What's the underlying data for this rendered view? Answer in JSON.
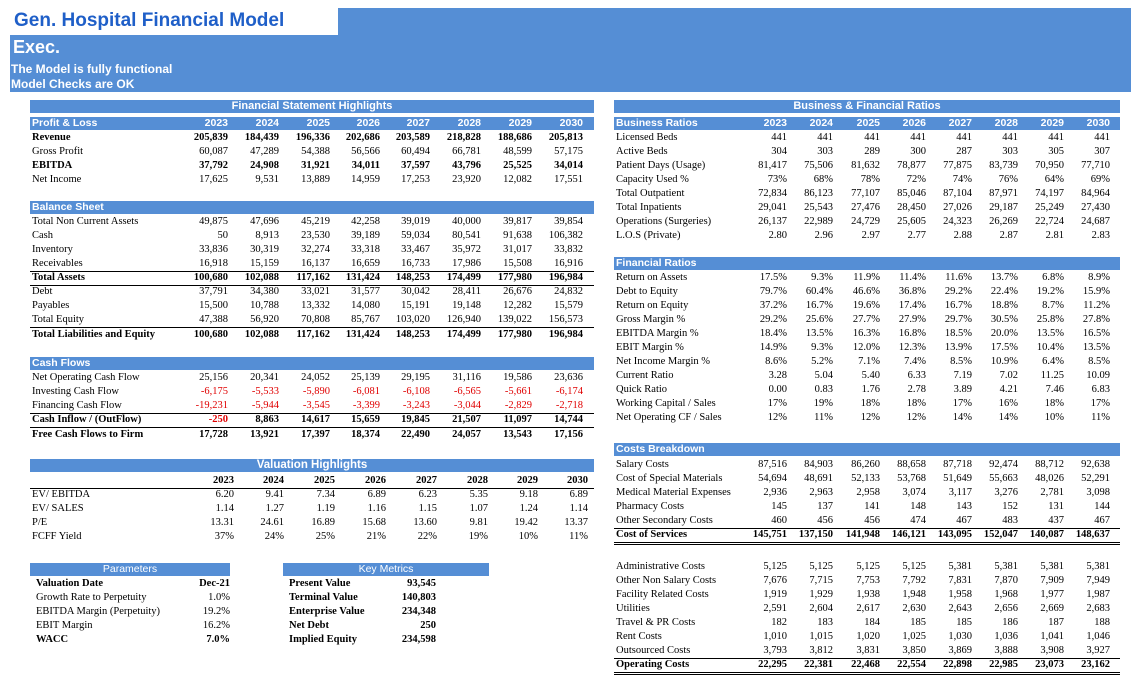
{
  "header": {
    "title": "Gen. Hospital Financial Model",
    "subtitle": "Exec.",
    "status_line1": "The Model is fully functional",
    "status_line2": "Model Checks are OK"
  },
  "years": [
    "2023",
    "2024",
    "2025",
    "2026",
    "2027",
    "2028",
    "2029",
    "2030"
  ],
  "fin_highlights_title": "Financial Statement Highlights",
  "pl": {
    "title": "Profit & Loss",
    "rows": [
      {
        "label": "Revenue",
        "bold": true,
        "values": [
          "205,839",
          "184,439",
          "196,336",
          "202,686",
          "203,589",
          "218,828",
          "188,686",
          "205,813"
        ]
      },
      {
        "label": "Gross Profit",
        "values": [
          "60,087",
          "47,289",
          "54,388",
          "56,566",
          "60,494",
          "66,781",
          "48,599",
          "57,175"
        ]
      },
      {
        "label": "EBITDA",
        "bold": true,
        "values": [
          "37,792",
          "24,908",
          "31,921",
          "34,011",
          "37,597",
          "43,796",
          "25,525",
          "34,014"
        ]
      },
      {
        "label": "Net Income",
        "values": [
          "17,625",
          "9,531",
          "13,889",
          "14,959",
          "17,253",
          "23,920",
          "12,082",
          "17,551"
        ]
      }
    ]
  },
  "bs": {
    "title": "Balance Sheet",
    "rows": [
      {
        "label": "Total Non Current Assets",
        "values": [
          "49,875",
          "47,696",
          "45,219",
          "42,258",
          "39,019",
          "40,000",
          "39,817",
          "39,854"
        ]
      },
      {
        "label": "Cash",
        "values": [
          "50",
          "8,913",
          "23,530",
          "39,189",
          "59,034",
          "80,541",
          "91,638",
          "106,382"
        ]
      },
      {
        "label": "Inventory",
        "values": [
          "33,836",
          "30,319",
          "32,274",
          "33,318",
          "33,467",
          "35,972",
          "31,017",
          "33,832"
        ]
      },
      {
        "label": "Receivables",
        "values": [
          "16,918",
          "15,159",
          "16,137",
          "16,659",
          "16,733",
          "17,986",
          "15,508",
          "16,916"
        ]
      },
      {
        "label": "Total Assets",
        "bold": true,
        "values": [
          "100,680",
          "102,088",
          "117,162",
          "131,424",
          "148,253",
          "174,499",
          "177,980",
          "196,984"
        ]
      },
      {
        "label": "Debt",
        "values": [
          "37,791",
          "34,380",
          "33,021",
          "31,577",
          "30,042",
          "28,411",
          "26,676",
          "24,832"
        ]
      },
      {
        "label": "Payables",
        "values": [
          "15,500",
          "10,788",
          "13,332",
          "14,080",
          "15,191",
          "19,148",
          "12,282",
          "15,579"
        ]
      },
      {
        "label": "Total Equity",
        "values": [
          "47,388",
          "56,920",
          "70,808",
          "85,767",
          "103,020",
          "126,940",
          "139,022",
          "156,573"
        ]
      },
      {
        "label": "Total Liabilities and Equity",
        "bold": true,
        "values": [
          "100,680",
          "102,088",
          "117,162",
          "131,424",
          "148,253",
          "174,499",
          "177,980",
          "196,984"
        ]
      }
    ]
  },
  "cf": {
    "title": "Cash Flows",
    "rows": [
      {
        "label": "Net Operating Cash Flow",
        "values": [
          "25,156",
          "20,341",
          "24,052",
          "25,139",
          "29,195",
          "31,116",
          "19,586",
          "23,636"
        ]
      },
      {
        "label": "Investing Cash Flow",
        "values": [
          "-6,175",
          "-5,533",
          "-5,890",
          "-6,081",
          "-6,108",
          "-6,565",
          "-5,661",
          "-6,174"
        ]
      },
      {
        "label": "Financing Cash Flow",
        "values": [
          "-19,231",
          "-5,944",
          "-3,545",
          "-3,399",
          "-3,243",
          "-3,044",
          "-2,829",
          "-2,718"
        ]
      },
      {
        "label": "Cash Inflow / (OutFlow)",
        "bold": true,
        "values": [
          "-250",
          "8,863",
          "14,617",
          "15,659",
          "19,845",
          "21,507",
          "11,097",
          "14,744"
        ]
      },
      {
        "label": "Free Cash Flows to Firm",
        "bold": true,
        "values": [
          "17,728",
          "13,921",
          "17,397",
          "18,374",
          "22,490",
          "24,057",
          "13,543",
          "17,156"
        ]
      }
    ]
  },
  "valuation": {
    "title": "Valuation Highlights",
    "rows": [
      {
        "label": "EV/ EBITDA",
        "values": [
          "6.20",
          "9.41",
          "7.34",
          "6.89",
          "6.23",
          "5.35",
          "9.18",
          "6.89"
        ]
      },
      {
        "label": "EV/ SALES",
        "values": [
          "1.14",
          "1.27",
          "1.19",
          "1.16",
          "1.15",
          "1.07",
          "1.24",
          "1.14"
        ]
      },
      {
        "label": "P/E",
        "values": [
          "13.31",
          "24.61",
          "16.89",
          "15.68",
          "13.60",
          "9.81",
          "19.42",
          "13.37"
        ]
      },
      {
        "label": "FCFF Yield",
        "values": [
          "37%",
          "24%",
          "25%",
          "21%",
          "22%",
          "19%",
          "10%",
          "11%"
        ]
      }
    ]
  },
  "parameters": {
    "title": "Parameters",
    "rows": [
      {
        "label": "Valuation Date",
        "value": "Dec-21"
      },
      {
        "label": "Growth Rate to Perpetuity",
        "value": "1.0%"
      },
      {
        "label": "EBITDA Margin (Perpetuity)",
        "value": "19.2%"
      },
      {
        "label": "EBIT Margin",
        "value": "16.2%"
      },
      {
        "label": "WACC",
        "value": "7.0%"
      }
    ]
  },
  "key_metrics": {
    "title": "Key Metrics",
    "rows": [
      {
        "label": "Present Value",
        "value": "93,545"
      },
      {
        "label": "Terminal Value",
        "value": "140,803"
      },
      {
        "label": "Enterprise Value",
        "value": "234,348"
      },
      {
        "label": "Net Debt",
        "value": "250"
      },
      {
        "label": "Implied Equity",
        "value": "234,598"
      }
    ]
  },
  "bfr_title": "Business & Financial Ratios",
  "business": {
    "title": "Business Ratios",
    "rows": [
      {
        "label": "Licensed Beds",
        "values": [
          "441",
          "441",
          "441",
          "441",
          "441",
          "441",
          "441",
          "441"
        ]
      },
      {
        "label": "Active Beds",
        "values": [
          "304",
          "303",
          "289",
          "300",
          "287",
          "303",
          "305",
          "307"
        ]
      },
      {
        "label": "Patient Days (Usage)",
        "values": [
          "81,417",
          "75,506",
          "81,632",
          "78,877",
          "77,875",
          "83,739",
          "70,950",
          "77,710"
        ]
      },
      {
        "label": "Capacity Used %",
        "values": [
          "73%",
          "68%",
          "78%",
          "72%",
          "74%",
          "76%",
          "64%",
          "69%"
        ]
      },
      {
        "label": "Total Outpatient",
        "values": [
          "72,834",
          "86,123",
          "77,107",
          "85,046",
          "87,104",
          "87,971",
          "74,197",
          "84,964"
        ]
      },
      {
        "label": "Total Inpatients",
        "values": [
          "29,041",
          "25,543",
          "27,476",
          "28,450",
          "27,026",
          "29,187",
          "25,249",
          "27,430"
        ]
      },
      {
        "label": "Operations (Surgeries)",
        "values": [
          "26,137",
          "22,989",
          "24,729",
          "25,605",
          "24,323",
          "26,269",
          "22,724",
          "24,687"
        ]
      },
      {
        "label": "L.O.S (Private)",
        "values": [
          "2.80",
          "2.96",
          "2.97",
          "2.77",
          "2.88",
          "2.87",
          "2.81",
          "2.83"
        ]
      }
    ]
  },
  "fin_ratios": {
    "title": "Financial Ratios",
    "rows": [
      {
        "label": "Return on Assets",
        "values": [
          "17.5%",
          "9.3%",
          "11.9%",
          "11.4%",
          "11.6%",
          "13.7%",
          "6.8%",
          "8.9%"
        ]
      },
      {
        "label": "Debt to Equity",
        "values": [
          "79.7%",
          "60.4%",
          "46.6%",
          "36.8%",
          "29.2%",
          "22.4%",
          "19.2%",
          "15.9%"
        ]
      },
      {
        "label": "Return on Equity",
        "values": [
          "37.2%",
          "16.7%",
          "19.6%",
          "17.4%",
          "16.7%",
          "18.8%",
          "8.7%",
          "11.2%"
        ]
      },
      {
        "label": "Gross Margin %",
        "values": [
          "29.2%",
          "25.6%",
          "27.7%",
          "27.9%",
          "29.7%",
          "30.5%",
          "25.8%",
          "27.8%"
        ]
      },
      {
        "label": "EBITDA Margin %",
        "values": [
          "18.4%",
          "13.5%",
          "16.3%",
          "16.8%",
          "18.5%",
          "20.0%",
          "13.5%",
          "16.5%"
        ]
      },
      {
        "label": "EBIT Margin %",
        "values": [
          "14.9%",
          "9.3%",
          "12.0%",
          "12.3%",
          "13.9%",
          "17.5%",
          "10.4%",
          "13.5%"
        ]
      },
      {
        "label": "Net Income Margin %",
        "values": [
          "8.6%",
          "5.2%",
          "7.1%",
          "7.4%",
          "8.5%",
          "10.9%",
          "6.4%",
          "8.5%"
        ]
      },
      {
        "label": "Current Ratio",
        "values": [
          "3.28",
          "5.04",
          "5.40",
          "6.33",
          "7.19",
          "7.02",
          "11.25",
          "10.09"
        ]
      },
      {
        "label": "Quick Ratio",
        "values": [
          "0.00",
          "0.83",
          "1.76",
          "2.78",
          "3.89",
          "4.21",
          "7.46",
          "6.83"
        ]
      },
      {
        "label": "Working Capital / Sales",
        "values": [
          "17%",
          "19%",
          "18%",
          "18%",
          "17%",
          "16%",
          "18%",
          "17%"
        ]
      },
      {
        "label": "Net Operating CF / Sales",
        "values": [
          "12%",
          "11%",
          "12%",
          "12%",
          "14%",
          "14%",
          "10%",
          "11%"
        ]
      }
    ]
  },
  "costs": {
    "title": "Costs Breakdown",
    "rows": [
      {
        "label": "Salary Costs",
        "values": [
          "87,516",
          "84,903",
          "86,260",
          "88,658",
          "87,718",
          "92,474",
          "88,712",
          "92,638"
        ]
      },
      {
        "label": "Cost of Special Materials",
        "values": [
          "54,694",
          "48,691",
          "52,133",
          "53,768",
          "51,649",
          "55,663",
          "48,026",
          "52,291"
        ]
      },
      {
        "label": "Medical Material Expenses",
        "values": [
          "2,936",
          "2,963",
          "2,958",
          "3,074",
          "3,117",
          "3,276",
          "2,781",
          "3,098"
        ]
      },
      {
        "label": "Pharmacy Costs",
        "values": [
          "145",
          "137",
          "141",
          "148",
          "143",
          "152",
          "131",
          "144"
        ]
      },
      {
        "label": "Other Secondary Costs",
        "values": [
          "460",
          "456",
          "456",
          "474",
          "467",
          "483",
          "437",
          "467"
        ]
      },
      {
        "label": "Cost of Services",
        "bold": true,
        "values": [
          "145,751",
          "137,150",
          "141,948",
          "146,121",
          "143,095",
          "152,047",
          "140,087",
          "148,637"
        ]
      }
    ]
  },
  "opcosts": {
    "rows": [
      {
        "label": "Administrative Costs",
        "values": [
          "5,125",
          "5,125",
          "5,125",
          "5,125",
          "5,381",
          "5,381",
          "5,381",
          "5,381"
        ]
      },
      {
        "label": "Other Non Salary Costs",
        "values": [
          "7,676",
          "7,715",
          "7,753",
          "7,792",
          "7,831",
          "7,870",
          "7,909",
          "7,949"
        ]
      },
      {
        "label": "Facility Related Costs",
        "values": [
          "1,919",
          "1,929",
          "1,938",
          "1,948",
          "1,958",
          "1,968",
          "1,977",
          "1,987"
        ]
      },
      {
        "label": "Utilities",
        "values": [
          "2,591",
          "2,604",
          "2,617",
          "2,630",
          "2,643",
          "2,656",
          "2,669",
          "2,683"
        ]
      },
      {
        "label": "Travel & PR Costs",
        "values": [
          "182",
          "183",
          "184",
          "185",
          "185",
          "186",
          "187",
          "188"
        ]
      },
      {
        "label": "Rent Costs",
        "values": [
          "1,010",
          "1,015",
          "1,020",
          "1,025",
          "1,030",
          "1,036",
          "1,041",
          "1,046"
        ]
      },
      {
        "label": "Outsourced Costs",
        "values": [
          "3,793",
          "3,812",
          "3,831",
          "3,850",
          "3,869",
          "3,888",
          "3,908",
          "3,927"
        ]
      },
      {
        "label": "Operating Costs",
        "bold": true,
        "values": [
          "22,295",
          "22,381",
          "22,468",
          "22,554",
          "22,898",
          "22,985",
          "23,073",
          "23,162"
        ]
      }
    ]
  }
}
